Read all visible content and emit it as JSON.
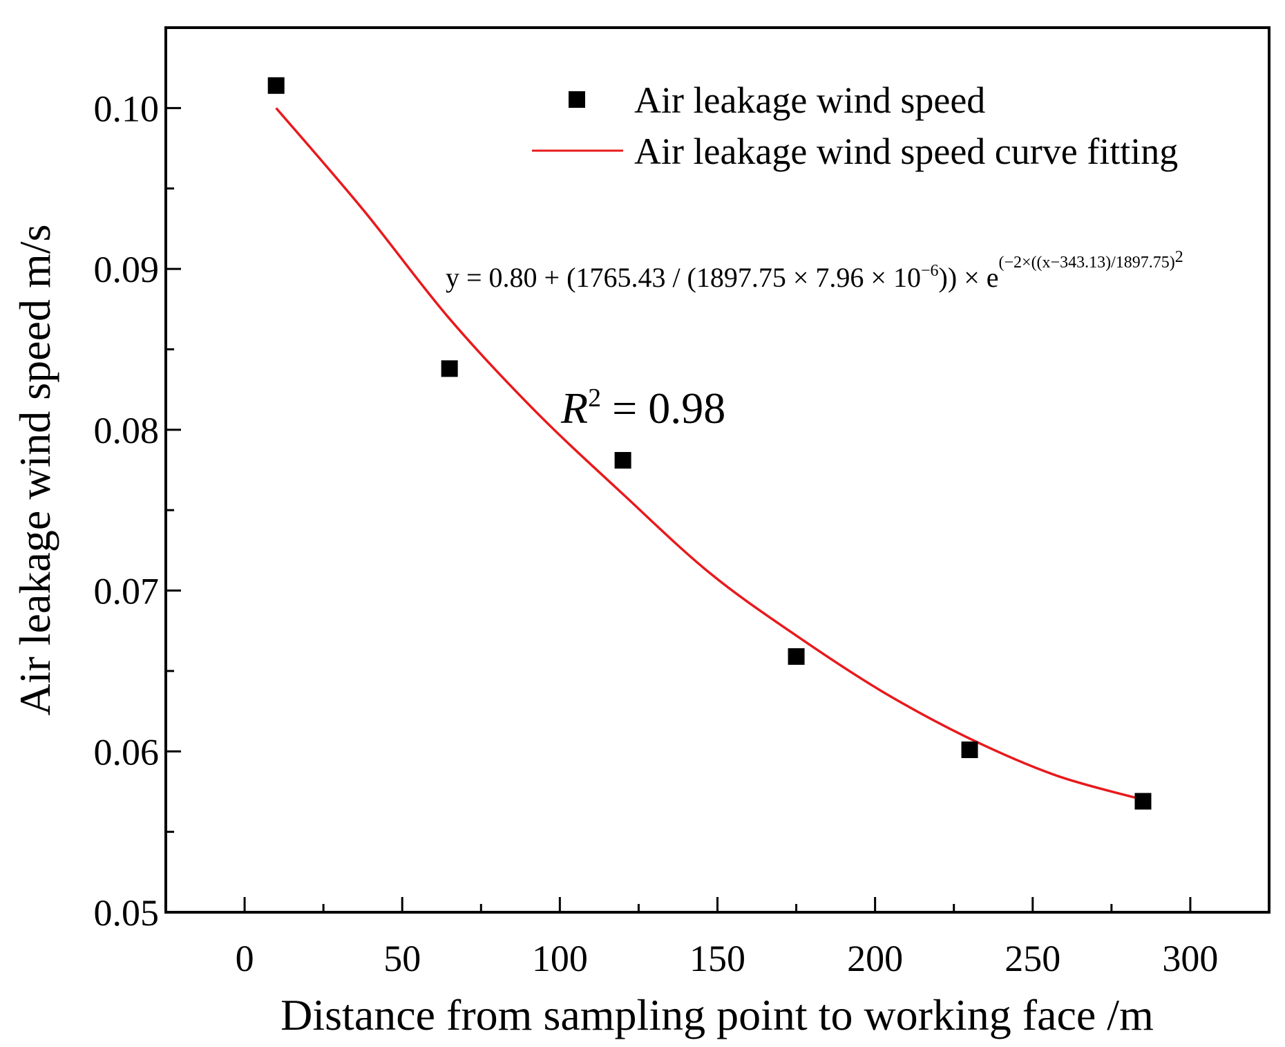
{
  "chart_data": {
    "type": "scatter",
    "title": "",
    "xlabel": "Distance from sampling point to working face /m",
    "ylabel": "Air leakage wind speed m/s",
    "xlim": [
      -25,
      325
    ],
    "ylim": [
      0.05,
      0.105
    ],
    "x_ticks": [
      0,
      50,
      100,
      150,
      200,
      250,
      300
    ],
    "x_tick_labels": [
      "0",
      "50",
      "100",
      "150",
      "200",
      "250",
      "300"
    ],
    "x_minor_ticks": [
      25,
      75,
      125,
      175,
      225,
      275
    ],
    "y_ticks": [
      0.05,
      0.06,
      0.07,
      0.08,
      0.09,
      0.1
    ],
    "y_tick_labels": [
      "0.05",
      "0.06",
      "0.07",
      "0.08",
      "0.09",
      "0.10"
    ],
    "y_minor_ticks": [
      0.055,
      0.065,
      0.075,
      0.085,
      0.095
    ],
    "grid": false,
    "legend_position": "top-right",
    "series": [
      {
        "name": "Air leakage wind speed",
        "kind": "scatter",
        "marker": "square",
        "color": "#000000",
        "x": [
          10,
          65,
          120,
          175,
          230,
          285
        ],
        "y": [
          0.1014,
          0.0838,
          0.0781,
          0.0659,
          0.0601,
          0.0569
        ]
      },
      {
        "name": "Air leakage wind speed curve fitting",
        "kind": "line",
        "color": "#e8191c",
        "x": [
          10,
          37.5,
          65,
          92.5,
          120,
          147.5,
          175,
          202.5,
          230,
          257.5,
          285
        ],
        "y": [
          0.1,
          0.0937,
          0.0869,
          0.0811,
          0.076,
          0.0711,
          0.0672,
          0.0637,
          0.0608,
          0.0585,
          0.057
        ]
      }
    ],
    "annotations": {
      "equation_prefix": "y = 0.80 + (1765.43 / (1897.75 × 7.96 × 10",
      "equation_exp1": "−6",
      "equation_mid": ")) × e",
      "equation_exp2": "(−2×((x−343.13)/1897.75)",
      "equation_exp2_power": "2",
      "r2_symbol": "R",
      "r2_power": "2",
      "r2_value": " = 0.98"
    }
  }
}
